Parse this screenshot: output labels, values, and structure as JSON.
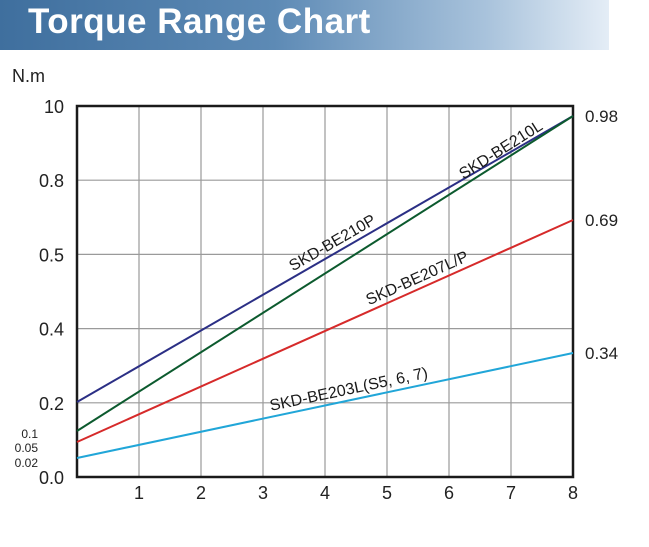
{
  "title": "Torque Range Chart",
  "chart_data": {
    "type": "line",
    "title": "Torque Range Chart",
    "ylabel": "N.m",
    "xlabel": "",
    "xlim": [
      0,
      8
    ],
    "grid": true,
    "x_ticks": [
      "1",
      "2",
      "3",
      "4",
      "5",
      "6",
      "7",
      "8"
    ],
    "y_ticks_left": [
      {
        "label": "10",
        "level": 0
      },
      {
        "label": "0.8",
        "level": 1
      },
      {
        "label": "0.5",
        "level": 2
      },
      {
        "label": "0.4",
        "level": 3
      },
      {
        "label": "0.2",
        "level": 4
      },
      {
        "label": "0.1",
        "level": 4.42,
        "small": true
      },
      {
        "label": "0.05",
        "level": 4.61,
        "small": true
      },
      {
        "label": "0.02",
        "level": 4.81,
        "small": true
      },
      {
        "label": "0.0",
        "level": 5
      }
    ],
    "series": [
      {
        "name": "SKD-BE210P",
        "color": "#2b2f85",
        "x": [
          0,
          8
        ],
        "y": [
          0.2,
          0.98
        ],
        "right_label": "0.98"
      },
      {
        "name": "SKD-BE210L",
        "color": "#0c5a2e",
        "x": [
          0,
          8
        ],
        "y": [
          0.1,
          0.98
        ],
        "right_label": ""
      },
      {
        "name": "SKD-BE207L/P",
        "color": "#d62a2a",
        "x": [
          0,
          8
        ],
        "y": [
          0.05,
          0.69
        ],
        "right_label": "0.69"
      },
      {
        "name": "SKD-BE203L(S5, 6, 7)",
        "color": "#21a6d8",
        "x": [
          0,
          8
        ],
        "y": [
          0.02,
          0.34
        ],
        "right_label": "0.34"
      }
    ]
  }
}
